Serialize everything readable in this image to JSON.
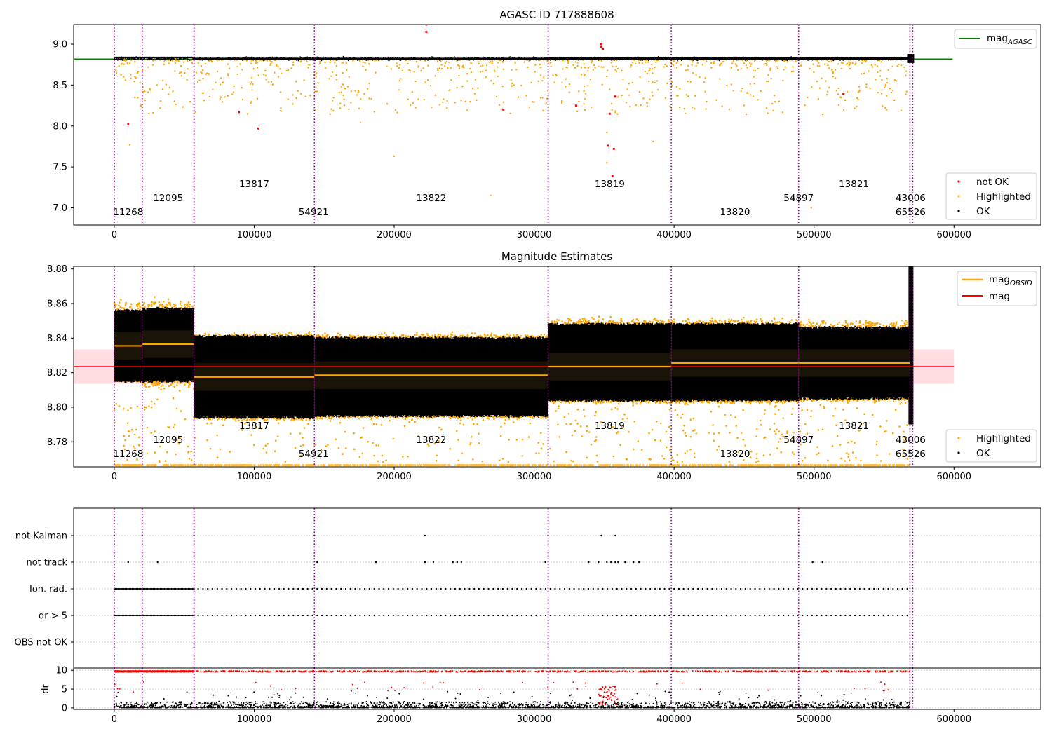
{
  "colors": {
    "ok": "#000000",
    "highlighted": "#ffa500",
    "not_ok": "#ff0000",
    "agasc_line": "#008000",
    "mag_line": "#ff0000",
    "mag_obsid_line": "#ffa500",
    "boundary": "#800080",
    "mag_band": "#ffdde0"
  },
  "chart_data": [
    {
      "type": "scatter",
      "title": "AGASC ID 717888608",
      "xlabel": "",
      "ylabel": "",
      "xlim": [
        -29000,
        662000
      ],
      "ylim": [
        6.79,
        9.24
      ],
      "xticks": [
        0,
        100000,
        200000,
        300000,
        400000,
        500000,
        600000
      ],
      "yticks": [
        7.0,
        7.5,
        8.0,
        8.5,
        9.0
      ],
      "grid": false,
      "legend_top": {
        "position": "top-right",
        "entries": [
          {
            "label": "mag",
            "sub": "AGASC",
            "color": "#008000"
          }
        ]
      },
      "legend_bottom": {
        "position": "bottom-right",
        "entries": [
          "not OK",
          "Highlighted",
          "OK"
        ]
      },
      "mag_agasc": 8.818,
      "mag_agasc_x_range": [
        -29000,
        599000
      ],
      "observation_boundaries": [
        0,
        20000,
        57000,
        143000,
        310000,
        398000,
        489000,
        568500,
        570500
      ],
      "obsid_labels": [
        {
          "text": "11268",
          "x": 10000,
          "row": 0
        },
        {
          "text": "12095",
          "x": 38500,
          "row": 1
        },
        {
          "text": "13817",
          "x": 100000,
          "row": 2
        },
        {
          "text": "54921",
          "x": 142500,
          "row": 0
        },
        {
          "text": "13822",
          "x": 226500,
          "row": 1
        },
        {
          "text": "13819",
          "x": 354000,
          "row": 2
        },
        {
          "text": "13820",
          "x": 443500,
          "row": 0
        },
        {
          "text": "54897",
          "x": 489000,
          "row": 1
        },
        {
          "text": "13821",
          "x": 528500,
          "row": 2
        },
        {
          "text": "43006",
          "x": 569000,
          "row": 1
        },
        {
          "text": "65526",
          "x": 569000,
          "row": 0
        }
      ],
      "band_top": 8.83,
      "band_bottom": 8.805,
      "highlighted_scatter": {
        "y_min": 8.14,
        "y_max": 8.81,
        "count": 900
      },
      "not_ok_points": [
        {
          "x": 10000,
          "y": 8.02
        },
        {
          "x": 89000,
          "y": 8.17
        },
        {
          "x": 103000,
          "y": 7.97
        },
        {
          "x": 223000,
          "y": 9.15
        },
        {
          "x": 223000,
          "y": 9.24
        },
        {
          "x": 278000,
          "y": 8.2
        },
        {
          "x": 330000,
          "y": 8.25
        },
        {
          "x": 348000,
          "y": 9.0
        },
        {
          "x": 348000,
          "y": 8.97
        },
        {
          "x": 349000,
          "y": 8.94
        },
        {
          "x": 353000,
          "y": 7.76
        },
        {
          "x": 354000,
          "y": 8.15
        },
        {
          "x": 356000,
          "y": 7.39
        },
        {
          "x": 357000,
          "y": 7.72
        },
        {
          "x": 358000,
          "y": 8.36
        },
        {
          "x": 521000,
          "y": 8.39
        }
      ],
      "outlier_highlighted_points": [
        {
          "x": 11000,
          "y": 7.77
        },
        {
          "x": 176000,
          "y": 8.04
        },
        {
          "x": 200000,
          "y": 7.63
        },
        {
          "x": 269000,
          "y": 7.15
        },
        {
          "x": 385000,
          "y": 7.81
        },
        {
          "x": 498000,
          "y": 7.0
        },
        {
          "x": 352000,
          "y": 7.55
        },
        {
          "x": 352000,
          "y": 7.92
        },
        {
          "x": 450000,
          "y": 8.25
        },
        {
          "x": 475000,
          "y": 8.3
        },
        {
          "x": 251000,
          "y": 8.3
        },
        {
          "x": 156000,
          "y": 8.31
        }
      ]
    },
    {
      "type": "scatter",
      "title": "Magnitude Estimates",
      "xlabel": "",
      "ylabel": "",
      "xlim": [
        -29000,
        662000
      ],
      "ylim": [
        8.7655,
        8.8815
      ],
      "xticks": [
        0,
        100000,
        200000,
        300000,
        400000,
        500000,
        600000
      ],
      "yticks": [
        8.78,
        8.8,
        8.82,
        8.84,
        8.86,
        8.88
      ],
      "grid": false,
      "legend_top": {
        "position": "top-right",
        "entries": [
          {
            "label": "mag",
            "sub": "OBSID",
            "color": "#ffa500"
          },
          {
            "label": "mag",
            "sub": "",
            "color": "#ff0000"
          }
        ]
      },
      "legend_bottom": {
        "position": "bottom-right",
        "entries": [
          "Highlighted",
          "OK"
        ]
      },
      "mag": 8.8235,
      "mag_band": [
        8.8135,
        8.8335
      ],
      "segments": [
        {
          "x0": 0,
          "x1": 20000,
          "mag_obsid": 8.8355,
          "ok_lo": 8.8155,
          "ok_hi": 8.8555,
          "hl_lo": 8.8145,
          "hl_hi": 8.866
        },
        {
          "x0": 20000,
          "x1": 57000,
          "mag_obsid": 8.8365,
          "ok_lo": 8.8155,
          "ok_hi": 8.8565,
          "hl_lo": 8.806,
          "hl_hi": 8.866
        },
        {
          "x0": 57000,
          "x1": 143000,
          "mag_obsid": 8.8175,
          "ok_lo": 8.7945,
          "ok_hi": 8.8405,
          "hl_lo": 8.791,
          "hl_hi": 8.8445
        },
        {
          "x0": 143000,
          "x1": 310000,
          "mag_obsid": 8.8185,
          "ok_lo": 8.7955,
          "ok_hi": 8.8395,
          "hl_lo": 8.792,
          "hl_hi": 8.8445
        },
        {
          "x0": 310000,
          "x1": 398000,
          "mag_obsid": 8.8235,
          "ok_lo": 8.8045,
          "ok_hi": 8.8475,
          "hl_lo": 8.801,
          "hl_hi": 8.8535
        },
        {
          "x0": 398000,
          "x1": 489000,
          "mag_obsid": 8.8255,
          "ok_lo": 8.8045,
          "ok_hi": 8.8475,
          "hl_lo": 8.801,
          "hl_hi": 8.8535
        },
        {
          "x0": 489000,
          "x1": 568500,
          "mag_obsid": 8.8255,
          "ok_lo": 8.8055,
          "ok_hi": 8.8455,
          "hl_lo": 8.802,
          "hl_hi": 8.8525
        }
      ],
      "floor_highlighted_y": 8.7665,
      "obsid_labels": [
        {
          "text": "11268",
          "x": 10000,
          "row": 0
        },
        {
          "text": "12095",
          "x": 38500,
          "row": 1
        },
        {
          "text": "13817",
          "x": 100000,
          "row": 2
        },
        {
          "text": "54921",
          "x": 142500,
          "row": 0
        },
        {
          "text": "13822",
          "x": 226500,
          "row": 1
        },
        {
          "text": "13819",
          "x": 354000,
          "row": 2
        },
        {
          "text": "13820",
          "x": 443500,
          "row": 0
        },
        {
          "text": "54897",
          "x": 489000,
          "row": 1
        },
        {
          "text": "13821",
          "x": 528500,
          "row": 2
        },
        {
          "text": "43006",
          "x": 569000,
          "row": 1
        },
        {
          "text": "65526",
          "x": 569000,
          "row": 0
        }
      ],
      "observation_boundaries": [
        0,
        20000,
        57000,
        143000,
        310000,
        398000,
        489000,
        568500,
        570500
      ]
    },
    {
      "type": "scatter",
      "title": "",
      "xlabel": "",
      "ylabel": "",
      "xlim": [
        -29000,
        662000
      ],
      "categories": [
        "not Kalman",
        "not track",
        "Ion. rad.",
        "dr > 5",
        "OBS not OK"
      ],
      "grid": "horizontal-dotted",
      "flags": {
        "not Kalman": [
          0,
          20000,
          57000,
          143000,
          222000,
          310000,
          348000,
          358000,
          398000,
          489000,
          568500
        ],
        "not track": [
          10000,
          31000,
          145000,
          187000,
          222000,
          228000,
          242000,
          245000,
          248000,
          308000,
          339000,
          346000,
          352000,
          355000,
          358000,
          360000,
          365000,
          371000,
          375000,
          499000,
          506000
        ],
        "Ion. rad.": "dense 0-57000, spaced every ~3500 elsewhere",
        "dr > 5": "dense 0-57000, spaced every ~3500 elsewhere",
        "OBS not OK": []
      },
      "observation_boundaries": [
        0,
        20000,
        57000,
        143000,
        310000,
        398000,
        489000,
        568500,
        570500
      ]
    },
    {
      "type": "scatter",
      "title": "",
      "xlabel": "",
      "ylabel": "dr",
      "xlim": [
        -29000,
        662000
      ],
      "ylim": [
        -0.4,
        10.6
      ],
      "xticks": [
        0,
        100000,
        200000,
        300000,
        400000,
        500000,
        600000
      ],
      "yticks": [
        0,
        5,
        10
      ],
      "grid": "horizontal-dotted",
      "ok_range": [
        0,
        3
      ],
      "not_ok_clip": 9.7,
      "observation_boundaries": [
        0,
        20000,
        57000,
        143000,
        310000,
        398000,
        489000,
        568500,
        570500
      ]
    }
  ]
}
